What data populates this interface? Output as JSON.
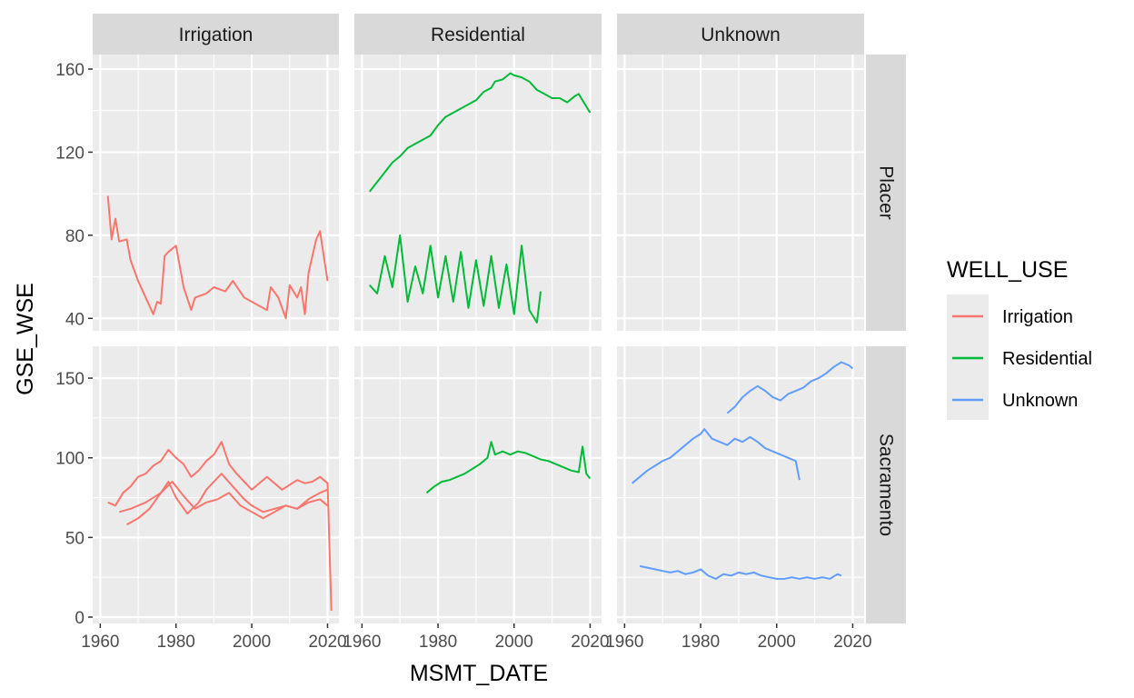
{
  "chart_data": {
    "type": "line",
    "xlabel": "MSMT_DATE",
    "ylabel": "GSE_WSE",
    "legend": {
      "title": "WELL_USE",
      "position": "right",
      "entries": [
        "Irrigation",
        "Residential",
        "Unknown"
      ]
    },
    "facet_cols": [
      "Irrigation",
      "Residential",
      "Unknown"
    ],
    "facet_rows": [
      "Placer",
      "Sacramento"
    ],
    "colors": {
      "Irrigation": "#F8766D",
      "Residential": "#00BA38",
      "Unknown": "#619CFF"
    },
    "xlim": [
      1958,
      2023
    ],
    "x_ticks": [
      1960,
      1980,
      2000,
      2020
    ],
    "x_tick_labels": [
      "1960",
      "1980",
      "2000",
      "2020"
    ],
    "rows": [
      {
        "name": "Placer",
        "ylim": [
          34,
          167
        ],
        "y_ticks": [
          40,
          80,
          120,
          160
        ],
        "y_tick_labels": [
          "40",
          "80",
          "120",
          "160"
        ]
      },
      {
        "name": "Sacramento",
        "ylim": [
          -4,
          170
        ],
        "y_ticks": [
          0,
          50,
          100,
          150
        ],
        "y_tick_labels": [
          "0",
          "50",
          "100",
          "150"
        ]
      }
    ],
    "grid": true,
    "series": [
      {
        "facet": [
          0,
          0
        ],
        "group": "Irrigation",
        "x": [
          1962,
          1963,
          1964,
          1965,
          1967,
          1968,
          1970,
          1972,
          1974,
          1975,
          1976,
          1977,
          1978,
          1980,
          1982,
          1984,
          1985,
          1988,
          1990,
          1993,
          1995,
          1998,
          2000,
          2002,
          2004,
          2005,
          2007,
          2009,
          2010,
          2012,
          2013,
          2014,
          2015,
          2016,
          2017,
          2018,
          2019,
          2020
        ],
        "y": [
          99,
          78,
          88,
          77,
          78,
          68,
          58,
          50,
          42,
          48,
          47,
          70,
          72,
          75,
          55,
          44,
          50,
          52,
          55,
          53,
          58,
          50,
          48,
          46,
          44,
          55,
          50,
          40,
          56,
          50,
          55,
          42,
          62,
          70,
          78,
          82,
          70,
          58
        ]
      },
      {
        "facet": [
          0,
          1
        ],
        "group": "Residential",
        "x": [
          1962,
          1965,
          1968,
          1970,
          1972,
          1974,
          1976,
          1978,
          1980,
          1982,
          1984,
          1986,
          1988,
          1990,
          1992,
          1994,
          1995,
          1997,
          1999,
          2000,
          2002,
          2004,
          2006,
          2008,
          2010,
          2012,
          2014,
          2016,
          2017,
          2018,
          2019,
          2020
        ],
        "y": [
          101,
          108,
          115,
          118,
          122,
          124,
          126,
          128,
          133,
          137,
          139,
          141,
          143,
          145,
          149,
          151,
          154,
          155,
          158,
          157,
          156,
          154,
          150,
          148,
          146,
          146,
          144,
          147,
          148,
          145,
          142,
          139
        ]
      },
      {
        "facet": [
          0,
          1
        ],
        "group": "Residential",
        "x": [
          1962,
          1964,
          1966,
          1968,
          1970,
          1972,
          1974,
          1976,
          1978,
          1980,
          1982,
          1984,
          1986,
          1988,
          1990,
          1992,
          1994,
          1996,
          1998,
          2000,
          2002,
          2004,
          2006,
          2007
        ],
        "y": [
          56,
          52,
          70,
          55,
          80,
          48,
          65,
          52,
          75,
          50,
          70,
          48,
          72,
          45,
          68,
          46,
          70,
          45,
          66,
          42,
          75,
          44,
          38,
          53
        ]
      },
      {
        "facet": [
          1,
          0
        ],
        "group": "Irrigation",
        "x": [
          1962,
          1964,
          1966,
          1968,
          1970,
          1972,
          1974,
          1976,
          1978,
          1980,
          1982,
          1984,
          1986,
          1988,
          1990,
          1992,
          1994,
          1996,
          1998,
          2000,
          2002,
          2004,
          2006,
          2008,
          2010,
          2012,
          2014,
          2016,
          2018,
          2020,
          2021
        ],
        "y": [
          72,
          70,
          78,
          82,
          88,
          90,
          95,
          98,
          105,
          100,
          96,
          88,
          92,
          98,
          102,
          110,
          96,
          90,
          85,
          80,
          84,
          88,
          84,
          80,
          83,
          86,
          84,
          85,
          88,
          84,
          4
        ]
      },
      {
        "facet": [
          1,
          0
        ],
        "group": "Irrigation",
        "x": [
          1967,
          1970,
          1973,
          1976,
          1978,
          1980,
          1983,
          1986,
          1988,
          1990,
          1992,
          1995,
          1998,
          2000,
          2003,
          2006,
          2009,
          2012,
          2015,
          2018,
          2020
        ],
        "y": [
          58,
          62,
          68,
          78,
          85,
          75,
          65,
          72,
          80,
          85,
          90,
          82,
          74,
          70,
          66,
          68,
          70,
          68,
          74,
          78,
          80
        ]
      },
      {
        "facet": [
          1,
          0
        ],
        "group": "Irrigation",
        "x": [
          1965,
          1968,
          1972,
          1976,
          1979,
          1982,
          1985,
          1988,
          1991,
          1994,
          1997,
          2000,
          2003,
          2006,
          2009,
          2012,
          2015,
          2018,
          2020
        ],
        "y": [
          66,
          68,
          72,
          78,
          85,
          76,
          68,
          72,
          74,
          78,
          70,
          66,
          62,
          66,
          70,
          68,
          72,
          74,
          70
        ]
      },
      {
        "facet": [
          1,
          1
        ],
        "group": "Residential",
        "x": [
          1977,
          1979,
          1981,
          1983,
          1985,
          1987,
          1989,
          1991,
          1993,
          1994,
          1995,
          1997,
          1999,
          2001,
          2003,
          2005,
          2007,
          2009,
          2011,
          2013,
          2015,
          2017,
          2018,
          2019,
          2020
        ],
        "y": [
          78,
          82,
          85,
          86,
          88,
          90,
          93,
          96,
          100,
          110,
          102,
          104,
          102,
          104,
          103,
          101,
          99,
          98,
          96,
          94,
          92,
          91,
          107,
          90,
          87
        ]
      },
      {
        "facet": [
          1,
          2
        ],
        "group": "Unknown",
        "x": [
          1987,
          1989,
          1991,
          1993,
          1995,
          1997,
          1999,
          2001,
          2003,
          2005,
          2007,
          2009,
          2011,
          2013,
          2015,
          2017,
          2019,
          2020
        ],
        "y": [
          128,
          132,
          138,
          142,
          145,
          142,
          138,
          136,
          140,
          142,
          144,
          148,
          150,
          153,
          157,
          160,
          158,
          156
        ]
      },
      {
        "facet": [
          1,
          2
        ],
        "group": "Unknown",
        "x": [
          1962,
          1964,
          1966,
          1968,
          1970,
          1972,
          1974,
          1976,
          1978,
          1980,
          1981,
          1983,
          1985,
          1987,
          1989,
          1991,
          1993,
          1995,
          1997,
          1999,
          2001,
          2003,
          2005,
          2006
        ],
        "y": [
          84,
          88,
          92,
          95,
          98,
          100,
          104,
          108,
          112,
          115,
          118,
          112,
          110,
          108,
          112,
          110,
          113,
          110,
          106,
          104,
          102,
          100,
          98,
          86
        ]
      },
      {
        "facet": [
          1,
          2
        ],
        "group": "Unknown",
        "x": [
          1964,
          1966,
          1968,
          1970,
          1972,
          1974,
          1976,
          1978,
          1980,
          1982,
          1984,
          1986,
          1988,
          1990,
          1992,
          1994,
          1996,
          1998,
          2000,
          2002,
          2004,
          2006,
          2008,
          2010,
          2012,
          2014,
          2016,
          2017
        ],
        "y": [
          32,
          31,
          30,
          29,
          28,
          29,
          27,
          28,
          30,
          26,
          24,
          27,
          26,
          28,
          27,
          28,
          26,
          25,
          24,
          24,
          25,
          24,
          25,
          24,
          25,
          24,
          27,
          26
        ]
      }
    ]
  }
}
